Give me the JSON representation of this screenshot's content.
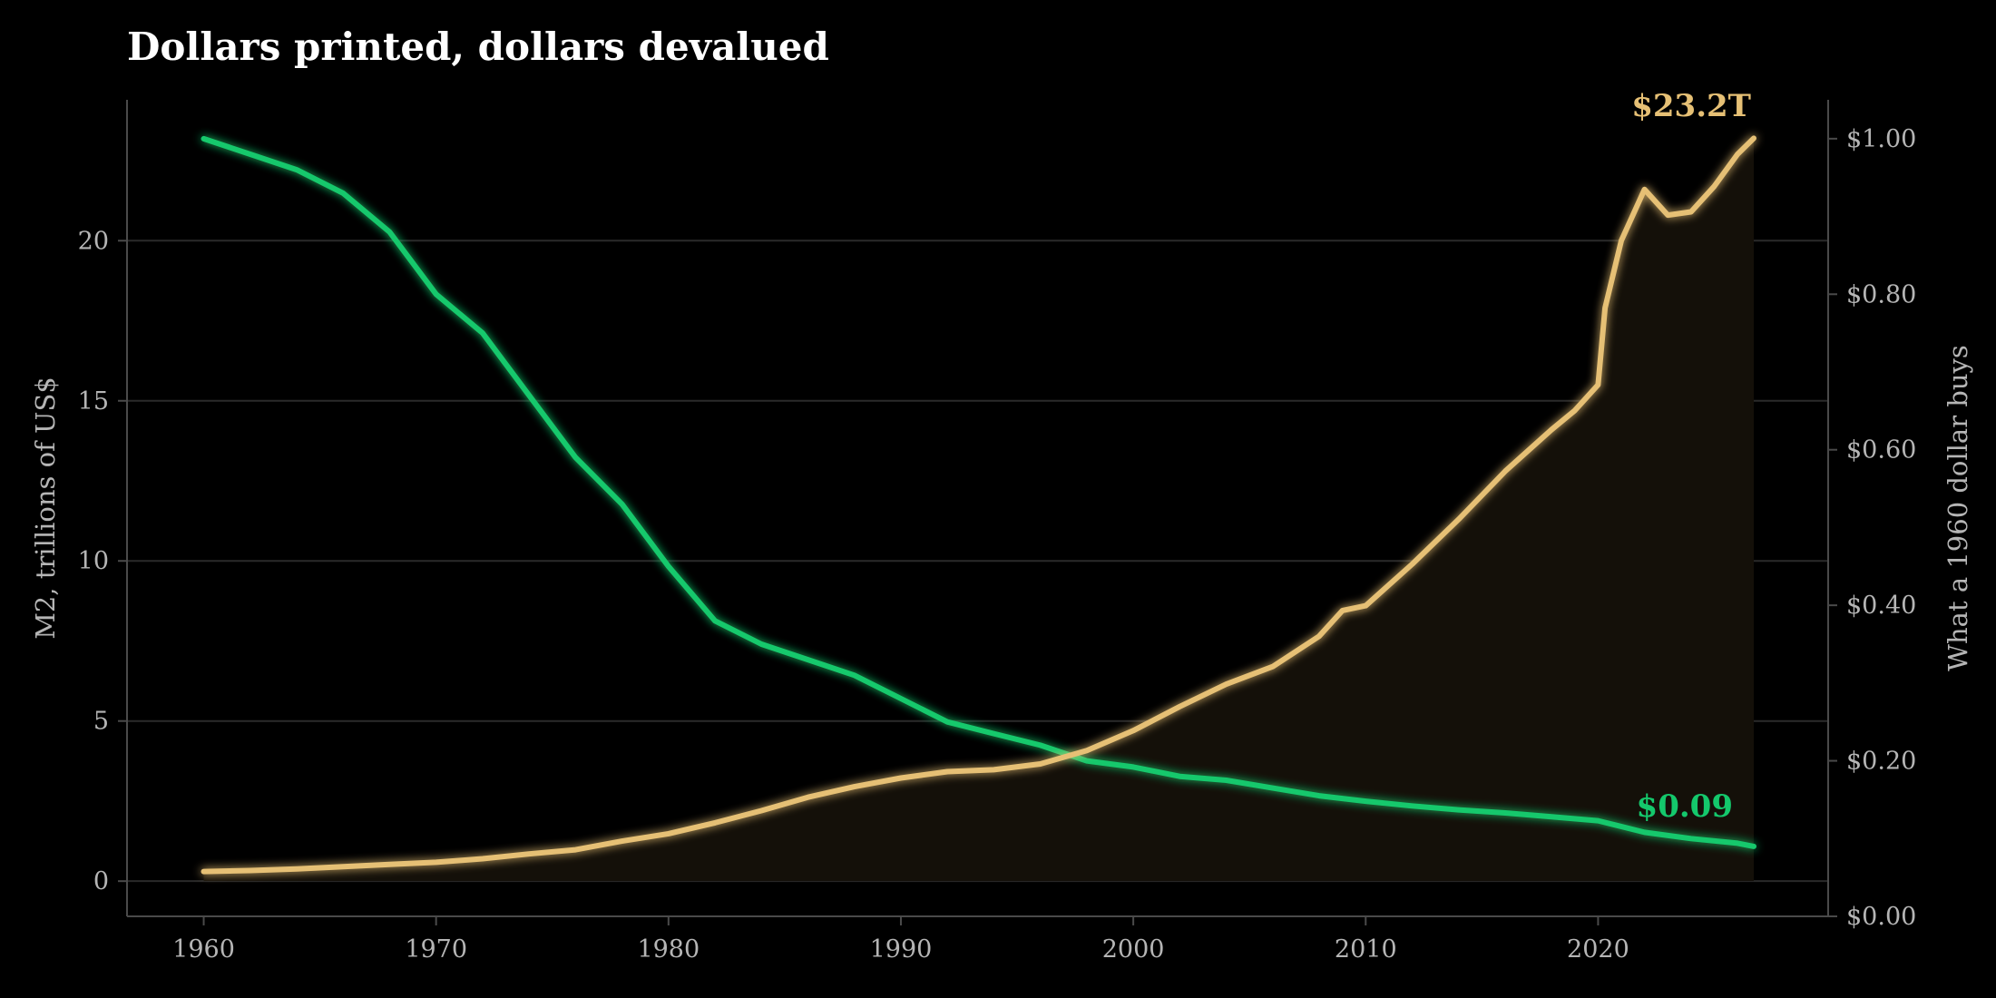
{
  "colors": {
    "background": "#000000",
    "m2_line": "#e6c075",
    "m2_fill": "#141009",
    "purchasing_power_line": "#14c86c",
    "text": "#b5b5b5",
    "title": "#ffffff"
  },
  "chart_data": {
    "type": "line",
    "title": "Dollars printed, dollars devalued",
    "xlabel": "",
    "ylabel": "M2, trillions of US$",
    "ylabel_right": "What a 1960 dollar buys",
    "xlim": [
      1956.7,
      2029.9
    ],
    "ylim": [
      -1.1,
      24.4
    ],
    "ylim_right": [
      0.0,
      1.05
    ],
    "x_ticks": [
      "1960",
      "1970",
      "1980",
      "1990",
      "2000",
      "2010",
      "2020"
    ],
    "y_ticks": [
      "0",
      "5",
      "10",
      "15",
      "20"
    ],
    "y_ticks_right": [
      "$0.00",
      "$0.20",
      "$0.40",
      "$0.60",
      "$0.80",
      "$1.00"
    ],
    "grid": "horizontal",
    "series": [
      {
        "name": "M2",
        "axis": "left",
        "points": [
          [
            1960,
            0.3
          ],
          [
            1962,
            0.33
          ],
          [
            1964,
            0.38
          ],
          [
            1966,
            0.45
          ],
          [
            1968,
            0.52
          ],
          [
            1970,
            0.59
          ],
          [
            1972,
            0.7
          ],
          [
            1974,
            0.85
          ],
          [
            1976,
            0.98
          ],
          [
            1978,
            1.25
          ],
          [
            1980,
            1.48
          ],
          [
            1982,
            1.82
          ],
          [
            1984,
            2.2
          ],
          [
            1986,
            2.62
          ],
          [
            1988,
            2.95
          ],
          [
            1990,
            3.22
          ],
          [
            1992,
            3.42
          ],
          [
            1994,
            3.48
          ],
          [
            1996,
            3.66
          ],
          [
            1998,
            4.08
          ],
          [
            2000,
            4.7
          ],
          [
            2002,
            5.45
          ],
          [
            2004,
            6.15
          ],
          [
            2006,
            6.7
          ],
          [
            2008,
            7.65
          ],
          [
            2009,
            8.45
          ],
          [
            2010,
            8.6
          ],
          [
            2012,
            9.9
          ],
          [
            2014,
            11.3
          ],
          [
            2016,
            12.8
          ],
          [
            2018,
            14.1
          ],
          [
            2019,
            14.7
          ],
          [
            2020,
            15.5
          ],
          [
            2020.3,
            17.9
          ],
          [
            2021,
            20.0
          ],
          [
            2022,
            21.6
          ],
          [
            2023,
            20.8
          ],
          [
            2024,
            20.9
          ],
          [
            2025,
            21.7
          ],
          [
            2026,
            22.7
          ],
          [
            2026.7,
            23.2
          ]
        ],
        "end_label": "$23.2T"
      },
      {
        "name": "What a 1960 dollar buys",
        "axis": "right",
        "points": [
          [
            1960,
            1.0
          ],
          [
            1962,
            0.98
          ],
          [
            1964,
            0.96
          ],
          [
            1966,
            0.93
          ],
          [
            1968,
            0.88
          ],
          [
            1970,
            0.8
          ],
          [
            1972,
            0.75
          ],
          [
            1974,
            0.67
          ],
          [
            1976,
            0.59
          ],
          [
            1978,
            0.53
          ],
          [
            1980,
            0.45
          ],
          [
            1982,
            0.38
          ],
          [
            1984,
            0.35
          ],
          [
            1986,
            0.33
          ],
          [
            1988,
            0.31
          ],
          [
            1990,
            0.28
          ],
          [
            1992,
            0.25
          ],
          [
            1994,
            0.235
          ],
          [
            1996,
            0.22
          ],
          [
            1998,
            0.2
          ],
          [
            2000,
            0.192
          ],
          [
            2002,
            0.18
          ],
          [
            2004,
            0.175
          ],
          [
            2006,
            0.165
          ],
          [
            2008,
            0.155
          ],
          [
            2010,
            0.148
          ],
          [
            2012,
            0.142
          ],
          [
            2014,
            0.137
          ],
          [
            2016,
            0.133
          ],
          [
            2018,
            0.128
          ],
          [
            2020,
            0.123
          ],
          [
            2022,
            0.108
          ],
          [
            2024,
            0.1
          ],
          [
            2026,
            0.094
          ],
          [
            2026.7,
            0.09
          ]
        ],
        "end_label": "$0.09"
      }
    ]
  }
}
